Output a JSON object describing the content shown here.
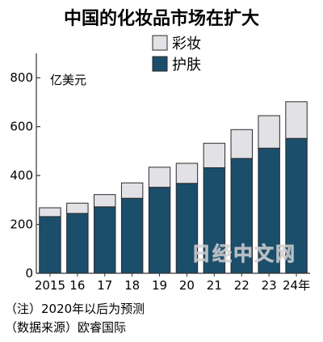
{
  "chart_data": {
    "type": "bar",
    "stacked": true,
    "title": "中国的化妆品市场在扩大",
    "unit_label": "亿美元",
    "categories": [
      "2015",
      "16",
      "17",
      "18",
      "19",
      "20",
      "21",
      "22",
      "23",
      "24年"
    ],
    "series": [
      {
        "name": "护肤",
        "color": "#1b4e6b",
        "values": [
          232,
          245,
          272,
          307,
          352,
          368,
          432,
          470,
          512,
          552
        ]
      },
      {
        "name": "彩妆",
        "color": "#e1e1e6",
        "values": [
          36,
          42,
          50,
          63,
          82,
          82,
          100,
          118,
          133,
          150
        ]
      }
    ],
    "ylim": [
      0,
      900
    ],
    "yticks": [
      0,
      200,
      400,
      600,
      800
    ],
    "legend_position": "top-right"
  },
  "notes": {
    "forecast": "（注）2020年以后为预测",
    "source": "（数据来源）欧睿国际"
  },
  "watermark": "日经中文网"
}
